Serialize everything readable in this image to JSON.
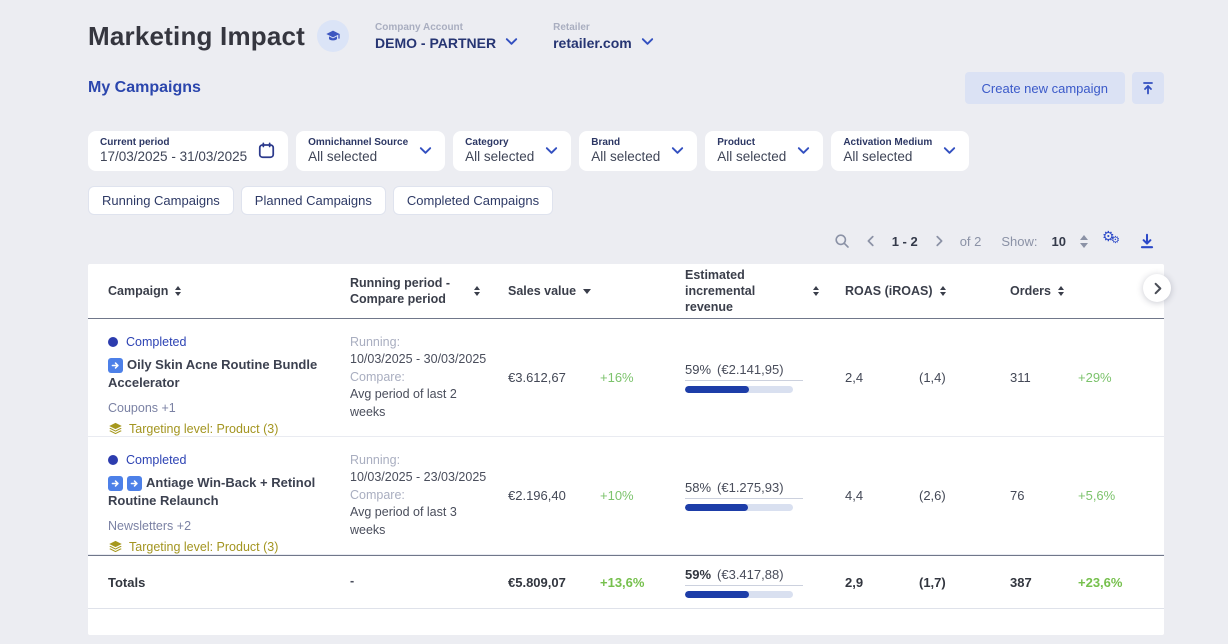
{
  "header": {
    "title": "Marketing Impact",
    "selectors": [
      {
        "label": "Company Account",
        "value": "DEMO - PARTNER"
      },
      {
        "label": "Retailer",
        "value": "retailer.com"
      }
    ]
  },
  "toolbar": {
    "section_title": "My Campaigns",
    "create_button_label": "Create new campaign"
  },
  "filters": [
    {
      "label": "Current period",
      "value": "17/03/2025 - 31/03/2025"
    },
    {
      "label": "Omnichannel Source",
      "value": "All selected"
    },
    {
      "label": "Category",
      "value": "All selected"
    },
    {
      "label": "Brand",
      "value": "All selected"
    },
    {
      "label": "Product",
      "value": "All selected"
    },
    {
      "label": "Activation Medium",
      "value": "All selected"
    }
  ],
  "tabs": [
    {
      "label": "Running Campaigns"
    },
    {
      "label": "Planned Campaigns"
    },
    {
      "label": "Completed Campaigns"
    }
  ],
  "pagination": {
    "range": "1 - 2",
    "of": "of 2",
    "show_label": "Show:",
    "show_value": "10"
  },
  "table": {
    "columns": {
      "campaign": "Campaign",
      "period": "Running period - Compare period",
      "sales": "Sales value",
      "incremental": "Estimated incremental revenue",
      "roas": "ROAS (iROAS)",
      "orders": "Orders"
    },
    "rows": [
      {
        "status": "Completed",
        "name": "Oily Skin Acne Routine Bundle Accelerator",
        "channels": "Coupons +1",
        "targeting": "Targeting level: Product (3)",
        "running_label": "Running:",
        "running": "10/03/2025 - 30/03/2025",
        "compare_label": "Compare:",
        "compare": "Avg period of last 2 weeks",
        "sales_value": "€3.612,67",
        "sales_delta": "+16%",
        "incremental_pct": "59%",
        "incremental_value": "(€2.141,95)",
        "incremental_bar": 59,
        "roas": "2,4",
        "iroas": "(1,4)",
        "orders": "311",
        "orders_delta": "+29%"
      },
      {
        "status": "Completed",
        "name": "Antiage Win-Back + Retinol Routine Relaunch",
        "channels": "Newsletters +2",
        "targeting": "Targeting level: Product (3)",
        "running_label": "Running:",
        "running": "10/03/2025 - 23/03/2025",
        "compare_label": "Compare:",
        "compare": "Avg period of last 3 weeks",
        "sales_value": "€2.196,40",
        "sales_delta": "+10%",
        "incremental_pct": "58%",
        "incremental_value": "(€1.275,93)",
        "incremental_bar": 58,
        "roas": "4,4",
        "iroas": "(2,6)",
        "orders": "76",
        "orders_delta": "+5,6%"
      }
    ],
    "totals": {
      "label": "Totals",
      "period": "-",
      "sales_value": "€5.809,07",
      "sales_delta": "+13,6%",
      "incremental_pct": "59%",
      "incremental_value": "(€3.417,88)",
      "incremental_bar": 59,
      "roas": "2,9",
      "iroas": "(1,7)",
      "orders": "387",
      "orders_delta": "+23,6%"
    }
  },
  "colors": {
    "page_bg": "#ecedf2",
    "accent_blue": "#3350c0",
    "navy": "#263573",
    "status_blue": "#2d43b4",
    "green": "#7cc36c",
    "olive": "#a39520",
    "bar_fill": "#1d3da8",
    "bar_track": "#d9e0f0",
    "chip_blue": "#4d80e8"
  }
}
